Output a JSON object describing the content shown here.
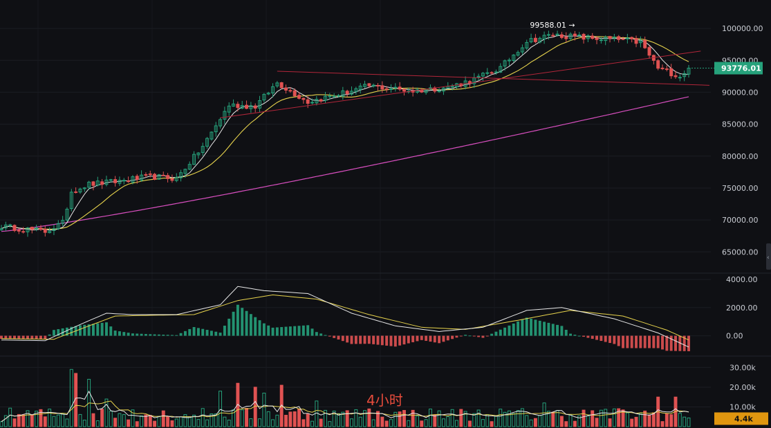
{
  "chart_data": [
    {
      "type": "candlestick",
      "panel": "price",
      "y_ticks": [
        "100000.00",
        "95000.00",
        "90000.00",
        "85000.00",
        "80000.00",
        "75000.00",
        "70000.00",
        "65000.00"
      ],
      "ylim": [
        62000,
        102500
      ],
      "current_price": "93776.01",
      "current_price_value": 93776.01,
      "high_annotation": "99588.01 →",
      "high_value": 99588.01,
      "colors": {
        "up": "#26a17b",
        "down": "#e05252",
        "ma_fast": "#e8e8e8",
        "ma_mid": "#e8d44d",
        "ma_slow": "#d94fc0",
        "trendline": "#b3263a",
        "price_tag": "#26a17b"
      },
      "trendlines": [
        {
          "from": [
            63,
            93300
          ],
          "to": [
            157,
            91200
          ]
        },
        {
          "from": [
            50,
            86000
          ],
          "to": [
            155,
            96000
          ]
        }
      ],
      "anchors": [
        [
          0,
          69000
        ],
        [
          10,
          68200
        ],
        [
          14,
          69500
        ],
        [
          16,
          74500
        ],
        [
          20,
          75600
        ],
        [
          26,
          76000
        ],
        [
          34,
          76800
        ],
        [
          40,
          76500
        ],
        [
          46,
          81500
        ],
        [
          52,
          88000
        ],
        [
          58,
          87800
        ],
        [
          63,
          91500
        ],
        [
          70,
          88500
        ],
        [
          76,
          89500
        ],
        [
          84,
          91000
        ],
        [
          94,
          90200
        ],
        [
          102,
          90800
        ],
        [
          108,
          92000
        ],
        [
          114,
          93800
        ],
        [
          120,
          98000
        ],
        [
          126,
          99000
        ],
        [
          134,
          98500
        ],
        [
          142,
          98200
        ],
        [
          146,
          97800
        ],
        [
          150,
          93800
        ],
        [
          155,
          92500
        ],
        [
          157,
          93776
        ]
      ],
      "ma_slow": {
        "start": 68200,
        "end": 89300
      }
    },
    {
      "type": "macd",
      "panel": "macd",
      "y_ticks": [
        "4000.00",
        "2000.00",
        "0.00"
      ],
      "ylim": [
        -1200,
        4300
      ],
      "colors": {
        "positive": "#26a17b",
        "negative": "#e05252",
        "dif": "#e8e8e8",
        "dea": "#e8d44d"
      },
      "dif_anchors": [
        [
          0,
          -300
        ],
        [
          10,
          -350
        ],
        [
          18,
          800
        ],
        [
          24,
          1600
        ],
        [
          30,
          1500
        ],
        [
          40,
          1500
        ],
        [
          50,
          2200
        ],
        [
          54,
          3500
        ],
        [
          60,
          3200
        ],
        [
          70,
          3000
        ],
        [
          80,
          1600
        ],
        [
          90,
          700
        ],
        [
          100,
          300
        ],
        [
          110,
          600
        ],
        [
          120,
          1800
        ],
        [
          128,
          2000
        ],
        [
          140,
          1200
        ],
        [
          150,
          200
        ],
        [
          157,
          -800
        ]
      ],
      "dea_anchors": [
        [
          0,
          -200
        ],
        [
          12,
          -250
        ],
        [
          20,
          700
        ],
        [
          26,
          1400
        ],
        [
          34,
          1450
        ],
        [
          44,
          1500
        ],
        [
          54,
          2500
        ],
        [
          62,
          2900
        ],
        [
          72,
          2600
        ],
        [
          84,
          1500
        ],
        [
          96,
          600
        ],
        [
          106,
          450
        ],
        [
          118,
          1100
        ],
        [
          130,
          1800
        ],
        [
          142,
          1400
        ],
        [
          152,
          400
        ],
        [
          157,
          -300
        ]
      ]
    },
    {
      "type": "bar",
      "panel": "volume",
      "y_ticks": [
        "30.00k",
        "20.00k",
        "10.00k"
      ],
      "ylim": [
        0,
        34000
      ],
      "current_volume": "4.4k",
      "current_volume_value": 4400,
      "colors": {
        "up": "#26a17b",
        "down": "#e05252",
        "ma_fast": "#e8e8e8",
        "ma_slow": "#e8d44d",
        "volume_tag": "#e0960f"
      },
      "spikes": [
        [
          16,
          29000
        ],
        [
          17,
          27000
        ],
        [
          20,
          24000
        ],
        [
          24,
          14000
        ],
        [
          30,
          8500
        ],
        [
          50,
          18000
        ],
        [
          54,
          22000
        ],
        [
          58,
          20000
        ],
        [
          60,
          17000
        ],
        [
          64,
          21000
        ],
        [
          68,
          9000
        ],
        [
          72,
          13000
        ],
        [
          84,
          9000
        ],
        [
          100,
          8000
        ],
        [
          124,
          12000
        ],
        [
          140,
          9000
        ],
        [
          150,
          15000
        ],
        [
          154,
          15000
        ]
      ]
    }
  ],
  "watermark": "4小时"
}
